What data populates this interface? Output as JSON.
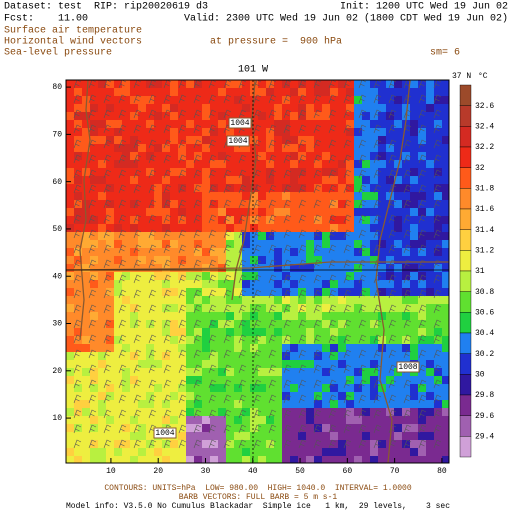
{
  "header": {
    "dataset": "Dataset: test  RIP: rip20020619 d3",
    "init": "Init: 1200 UTC Wed 19 Jun 02",
    "fcst": "Fcst:    11.00",
    "valid": "Valid: 2300 UTC Wed 19 Jun 02 (1800 CDT Wed 19 Jun 02)",
    "fields": [
      "Surface air temperature",
      "Horizontal wind vectors",
      "Sea-level pressure"
    ],
    "pressure": "at pressure =  900 hPa",
    "sm": "sm= 6"
  },
  "plot": {
    "xlim": [
      0.5,
      81.5
    ],
    "ylim": [
      0.5,
      81.5
    ],
    "xticks": [
      10,
      20,
      30,
      40,
      50,
      60,
      70,
      80
    ],
    "yticks": [
      10,
      20,
      30,
      40,
      50,
      60,
      70,
      80
    ],
    "meridian_label": "101 W",
    "parallel_label": "37 N",
    "contour_labels": [
      "1004",
      "1004",
      "1008",
      "1004"
    ]
  },
  "colorbar": {
    "unit": "°C",
    "labels": [
      "32.6",
      "32.4",
      "32.2",
      "32",
      "31.8",
      "31.6",
      "31.4",
      "31.2",
      "31",
      "30.8",
      "30.6",
      "30.4",
      "30.2",
      "30",
      "29.8",
      "29.6",
      "29.4"
    ],
    "colors": [
      "#9c4a2a",
      "#b83a2a",
      "#d42a22",
      "#ee2a18",
      "#ff5a1a",
      "#ff8a2a",
      "#ffaa33",
      "#ffd040",
      "#eeee40",
      "#b8f040",
      "#60e030",
      "#20d040",
      "#2080f0",
      "#2030d0",
      "#3018a0",
      "#7a2a90",
      "#a060b0",
      "#d0a0d8"
    ]
  },
  "footer": {
    "contours": "CONTOURS: UNITS=hPa  LOW= 980.00  HIGH= 1040.0  INTERVAL= 1.0000",
    "barbs": "BARB VECTORS: FULL BARB = 5 m s-1",
    "model": "Model info: V3.5.0 No Cumulus Blackadar  Simple ice   1 km,  29 levels,    3 sec"
  }
}
